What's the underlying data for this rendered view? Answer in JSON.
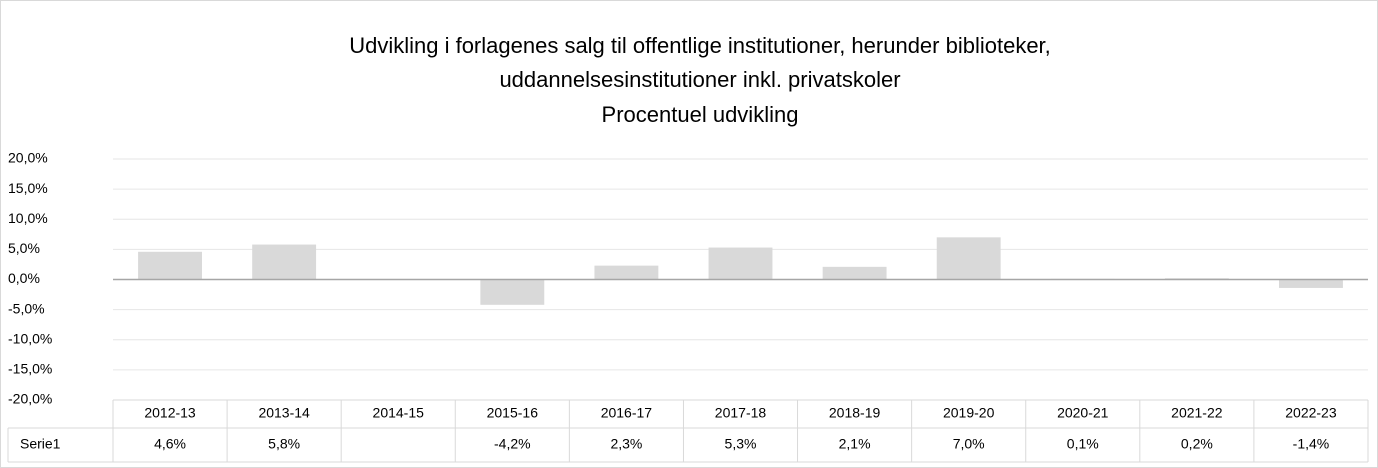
{
  "chart_data": {
    "type": "bar",
    "title": [
      "Udvikling i forlagenes salg til offentlige institutioner, herunder biblioteker,",
      "uddannelsesinstitutioner inkl. privatskoler"
    ],
    "subtitle": "Procentuel udvikling",
    "categories": [
      "2012-13",
      "2013-14",
      "2014-15",
      "2015-16",
      "2016-17",
      "2017-18",
      "2018-19",
      "2019-20",
      "2020-21",
      "2021-22",
      "2022-23"
    ],
    "series": [
      {
        "name": "Serie1",
        "color": "#d9d9d9",
        "values": [
          4.6,
          5.8,
          null,
          -4.2,
          2.3,
          5.3,
          2.1,
          7.0,
          0.1,
          0.2,
          -1.4
        ],
        "value_labels": [
          "4,6%",
          "5,8%",
          null,
          "-4,2%",
          "2,3%",
          "5,3%",
          "2,1%",
          "7,0%",
          "0,1%",
          "0,2%",
          "-1,4%"
        ]
      }
    ],
    "ylim": [
      -20,
      20
    ],
    "yticks": [
      {
        "value": 20,
        "label": "20,0%"
      },
      {
        "value": 15,
        "label": "15,0%"
      },
      {
        "value": 10,
        "label": "10,0%"
      },
      {
        "value": 5,
        "label": "5,0%"
      },
      {
        "value": 0,
        "label": "0,0%"
      },
      {
        "value": -5,
        "label": "-5,0%"
      },
      {
        "value": -10,
        "label": "-10,0%"
      },
      {
        "value": -15,
        "label": "-15,0%"
      },
      {
        "value": -20,
        "label": "-20,0%"
      }
    ],
    "grid": true
  }
}
